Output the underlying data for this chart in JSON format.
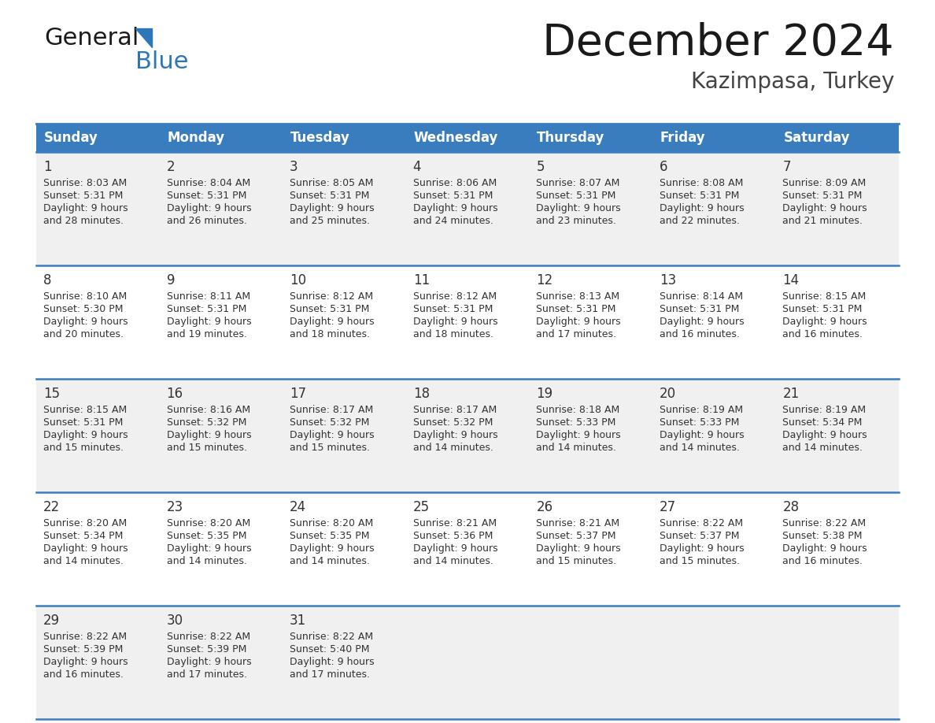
{
  "title": "December 2024",
  "subtitle": "Kazimpasa, Turkey",
  "header_color": "#3a7dbf",
  "header_text_color": "#ffffff",
  "cell_bg_even": "#f0f0f0",
  "cell_bg_odd": "#ffffff",
  "text_color": "#333333",
  "border_color": "#3a7dbf",
  "days_of_week": [
    "Sunday",
    "Monday",
    "Tuesday",
    "Wednesday",
    "Thursday",
    "Friday",
    "Saturday"
  ],
  "weeks": [
    [
      {
        "day": "1",
        "sunrise": "8:03 AM",
        "sunset": "5:31 PM",
        "dl_min": "28"
      },
      {
        "day": "2",
        "sunrise": "8:04 AM",
        "sunset": "5:31 PM",
        "dl_min": "26"
      },
      {
        "day": "3",
        "sunrise": "8:05 AM",
        "sunset": "5:31 PM",
        "dl_min": "25"
      },
      {
        "day": "4",
        "sunrise": "8:06 AM",
        "sunset": "5:31 PM",
        "dl_min": "24"
      },
      {
        "day": "5",
        "sunrise": "8:07 AM",
        "sunset": "5:31 PM",
        "dl_min": "23"
      },
      {
        "day": "6",
        "sunrise": "8:08 AM",
        "sunset": "5:31 PM",
        "dl_min": "22"
      },
      {
        "day": "7",
        "sunrise": "8:09 AM",
        "sunset": "5:31 PM",
        "dl_min": "21"
      }
    ],
    [
      {
        "day": "8",
        "sunrise": "8:10 AM",
        "sunset": "5:30 PM",
        "dl_min": "20"
      },
      {
        "day": "9",
        "sunrise": "8:11 AM",
        "sunset": "5:31 PM",
        "dl_min": "19"
      },
      {
        "day": "10",
        "sunrise": "8:12 AM",
        "sunset": "5:31 PM",
        "dl_min": "18"
      },
      {
        "day": "11",
        "sunrise": "8:12 AM",
        "sunset": "5:31 PM",
        "dl_min": "18"
      },
      {
        "day": "12",
        "sunrise": "8:13 AM",
        "sunset": "5:31 PM",
        "dl_min": "17"
      },
      {
        "day": "13",
        "sunrise": "8:14 AM",
        "sunset": "5:31 PM",
        "dl_min": "16"
      },
      {
        "day": "14",
        "sunrise": "8:15 AM",
        "sunset": "5:31 PM",
        "dl_min": "16"
      }
    ],
    [
      {
        "day": "15",
        "sunrise": "8:15 AM",
        "sunset": "5:31 PM",
        "dl_min": "15"
      },
      {
        "day": "16",
        "sunrise": "8:16 AM",
        "sunset": "5:32 PM",
        "dl_min": "15"
      },
      {
        "day": "17",
        "sunrise": "8:17 AM",
        "sunset": "5:32 PM",
        "dl_min": "15"
      },
      {
        "day": "18",
        "sunrise": "8:17 AM",
        "sunset": "5:32 PM",
        "dl_min": "14"
      },
      {
        "day": "19",
        "sunrise": "8:18 AM",
        "sunset": "5:33 PM",
        "dl_min": "14"
      },
      {
        "day": "20",
        "sunrise": "8:19 AM",
        "sunset": "5:33 PM",
        "dl_min": "14"
      },
      {
        "day": "21",
        "sunrise": "8:19 AM",
        "sunset": "5:34 PM",
        "dl_min": "14"
      }
    ],
    [
      {
        "day": "22",
        "sunrise": "8:20 AM",
        "sunset": "5:34 PM",
        "dl_min": "14"
      },
      {
        "day": "23",
        "sunrise": "8:20 AM",
        "sunset": "5:35 PM",
        "dl_min": "14"
      },
      {
        "day": "24",
        "sunrise": "8:20 AM",
        "sunset": "5:35 PM",
        "dl_min": "14"
      },
      {
        "day": "25",
        "sunrise": "8:21 AM",
        "sunset": "5:36 PM",
        "dl_min": "14"
      },
      {
        "day": "26",
        "sunrise": "8:21 AM",
        "sunset": "5:37 PM",
        "dl_min": "15"
      },
      {
        "day": "27",
        "sunrise": "8:22 AM",
        "sunset": "5:37 PM",
        "dl_min": "15"
      },
      {
        "day": "28",
        "sunrise": "8:22 AM",
        "sunset": "5:38 PM",
        "dl_min": "16"
      }
    ],
    [
      {
        "day": "29",
        "sunrise": "8:22 AM",
        "sunset": "5:39 PM",
        "dl_min": "16"
      },
      {
        "day": "30",
        "sunrise": "8:22 AM",
        "sunset": "5:39 PM",
        "dl_min": "17"
      },
      {
        "day": "31",
        "sunrise": "8:22 AM",
        "sunset": "5:40 PM",
        "dl_min": "17"
      },
      null,
      null,
      null,
      null
    ]
  ],
  "logo_general_color": "#1a1a1a",
  "logo_blue_color": "#2c77b8",
  "logo_triangle_color": "#2c77b8",
  "title_fontsize": 40,
  "subtitle_fontsize": 20,
  "header_fontsize": 12,
  "day_number_fontsize": 12,
  "cell_text_fontsize": 9
}
